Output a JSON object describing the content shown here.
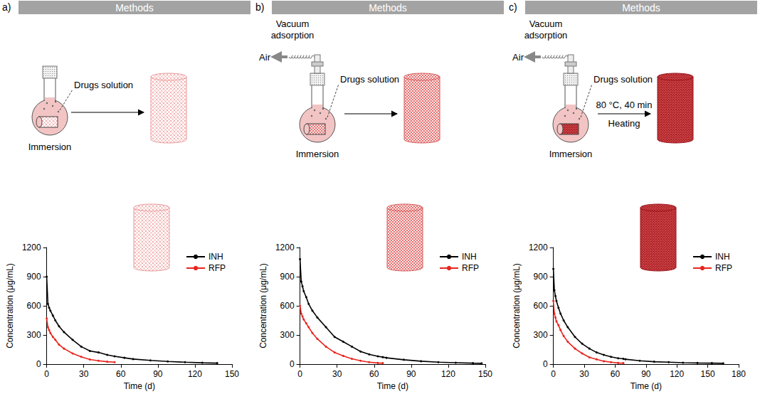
{
  "chart_data": [
    {
      "type": "line",
      "x_label": "Time (d)",
      "y_label": "Concentration (μg/mL)",
      "x": [
        0,
        1,
        2,
        3,
        5,
        7,
        10,
        14,
        21,
        28,
        35,
        42,
        49,
        55,
        63,
        70,
        84,
        98,
        112,
        126,
        138
      ],
      "xlim": [
        0,
        150
      ],
      "xticks": [
        0,
        30,
        60,
        90,
        120,
        150
      ],
      "ylim": [
        0,
        1200
      ],
      "yticks": [
        0,
        300,
        600,
        900,
        1200
      ],
      "grid": false,
      "legend": "upper right",
      "series": [
        {
          "name": "INH",
          "color": "#000000",
          "marker": "circle",
          "line_style": "solid",
          "values": [
            900,
            620,
            580,
            550,
            500,
            450,
            390,
            330,
            250,
            180,
            135,
            120,
            95,
            80,
            65,
            52,
            38,
            27,
            20,
            14,
            10
          ]
        },
        {
          "name": "RFP",
          "color": "#e8251e",
          "marker": "circle",
          "line_style": "solid",
          "values": [
            470,
            380,
            350,
            320,
            280,
            250,
            200,
            160,
            110,
            75,
            48,
            35,
            25,
            20,
            null,
            null,
            null,
            null,
            null,
            null,
            null
          ]
        }
      ]
    },
    {
      "type": "line",
      "x_label": "Time (d)",
      "y_label": "Concentration (μg/mL)",
      "x": [
        0,
        1,
        2,
        3,
        5,
        7,
        10,
        14,
        21,
        28,
        35,
        42,
        49,
        56,
        63,
        67,
        70,
        84,
        98,
        112,
        126,
        140,
        147
      ],
      "xlim": [
        0,
        150
      ],
      "xticks": [
        0,
        30,
        60,
        90,
        120,
        150
      ],
      "ylim": [
        0,
        1200
      ],
      "yticks": [
        0,
        300,
        600,
        900,
        1200
      ],
      "grid": false,
      "legend": "upper right",
      "series": [
        {
          "name": "INH",
          "color": "#000000",
          "marker": "circle",
          "line_style": "solid",
          "values": [
            1080,
            850,
            800,
            750,
            690,
            620,
            550,
            480,
            380,
            280,
            230,
            180,
            130,
            100,
            80,
            72,
            65,
            45,
            30,
            20,
            15,
            10,
            8
          ]
        },
        {
          "name": "RFP",
          "color": "#e8251e",
          "marker": "circle",
          "line_style": "solid",
          "values": [
            600,
            520,
            490,
            460,
            420,
            380,
            320,
            260,
            180,
            120,
            85,
            55,
            35,
            20,
            12,
            10,
            null,
            null,
            null,
            null,
            null,
            null,
            null
          ]
        }
      ]
    },
    {
      "type": "line",
      "x_label": "Time (d)",
      "y_label": "Concentration (μg/mL)",
      "x": [
        0,
        1,
        2,
        3,
        5,
        7,
        10,
        14,
        21,
        28,
        35,
        42,
        49,
        56,
        63,
        68,
        70,
        84,
        98,
        112,
        126,
        140,
        154,
        165
      ],
      "xlim": [
        0,
        180
      ],
      "xticks": [
        0,
        30,
        60,
        90,
        120,
        150,
        180
      ],
      "ylim": [
        0,
        1200
      ],
      "yticks": [
        0,
        300,
        600,
        900,
        1200
      ],
      "grid": false,
      "legend": "upper right",
      "series": [
        {
          "name": "INH",
          "color": "#000000",
          "marker": "circle",
          "line_style": "solid",
          "values": [
            980,
            760,
            700,
            650,
            580,
            520,
            450,
            380,
            280,
            210,
            160,
            120,
            95,
            75,
            60,
            55,
            50,
            35,
            25,
            20,
            15,
            12,
            10,
            8
          ]
        },
        {
          "name": "RFP",
          "color": "#e8251e",
          "marker": "circle",
          "line_style": "solid",
          "values": [
            650,
            520,
            480,
            440,
            400,
            350,
            290,
            230,
            160,
            110,
            70,
            50,
            30,
            20,
            12,
            10,
            null,
            null,
            null,
            null,
            null,
            null,
            null,
            null
          ]
        }
      ]
    }
  ],
  "panels": [
    {
      "label": "a)",
      "header": "Methods",
      "diagram": {
        "solution": "Drugs solution",
        "step": "Immersion"
      }
    },
    {
      "label": "b)",
      "header": "Methods",
      "diagram": {
        "vacuum": "Vacuum adsorption",
        "air": "Air",
        "solution": "Drugs solution",
        "step": "Immersion"
      }
    },
    {
      "label": "c)",
      "header": "Methods",
      "diagram": {
        "vacuum": "Vacuum adsorption",
        "air": "Air",
        "solution": "Drugs solution",
        "step": "Immersion",
        "condition": "80 °C, 40 min",
        "process": "Heating"
      }
    }
  ]
}
